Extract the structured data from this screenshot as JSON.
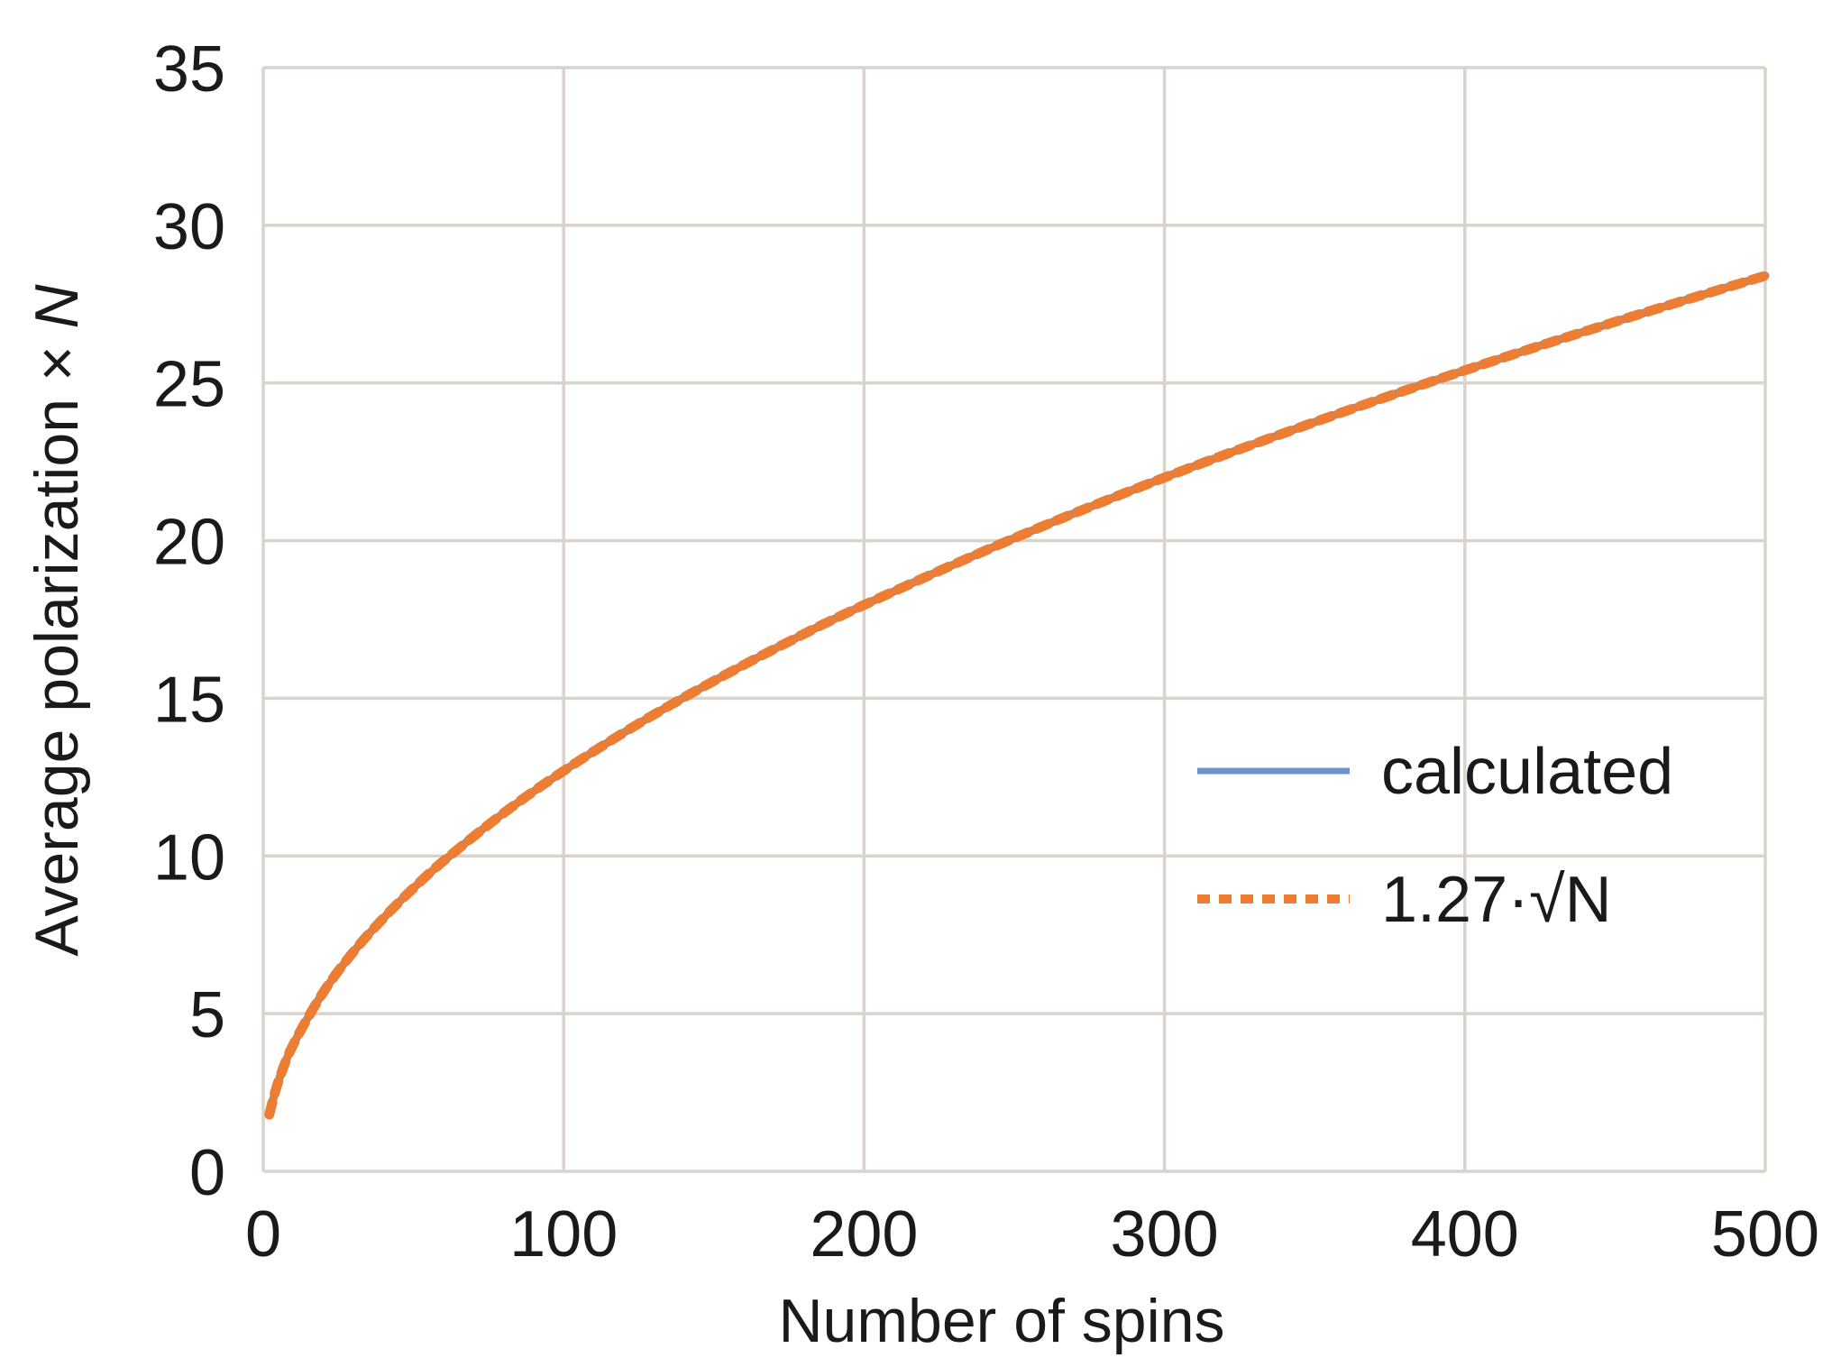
{
  "chart_data": {
    "type": "line",
    "title": "",
    "xlabel": "Number of spins",
    "ylabel": "Average polarization × ",
    "ylabel_italic": "N",
    "xlim": [
      0,
      500
    ],
    "ylim": [
      0,
      35
    ],
    "x_ticks": [
      0,
      100,
      200,
      300,
      400,
      500
    ],
    "x_tick_labels": [
      "0",
      "100",
      "200",
      "300",
      "400",
      "500"
    ],
    "y_ticks": [
      0,
      5,
      10,
      15,
      20,
      25,
      30,
      35
    ],
    "y_tick_labels": [
      "0",
      "5",
      "10",
      "15",
      "20",
      "25",
      "30",
      "35"
    ],
    "grid": true,
    "legend_position": "right",
    "series": [
      {
        "name": "calculated",
        "style": "solid",
        "color": "#6f93c8",
        "x": [
          2,
          5,
          10,
          20,
          30,
          40,
          50,
          60,
          80,
          100,
          125,
          150,
          175,
          200,
          250,
          300,
          350,
          400,
          450,
          500
        ],
        "y": [
          1.8,
          2.84,
          4.02,
          5.68,
          6.96,
          8.03,
          8.98,
          9.84,
          11.36,
          12.7,
          14.2,
          15.55,
          16.8,
          17.96,
          20.08,
          22.0,
          23.76,
          25.4,
          26.94,
          28.4
        ]
      },
      {
        "name": "1.27·√N",
        "style": "dotted",
        "color": "#ec7d33",
        "x": [
          2,
          5,
          10,
          20,
          30,
          40,
          50,
          60,
          80,
          100,
          125,
          150,
          175,
          200,
          250,
          300,
          350,
          400,
          450,
          500
        ],
        "y": [
          1.8,
          2.84,
          4.02,
          5.68,
          6.96,
          8.03,
          8.98,
          9.84,
          11.36,
          12.7,
          14.2,
          15.55,
          16.8,
          17.96,
          20.08,
          22.0,
          23.76,
          25.4,
          26.94,
          28.4
        ]
      }
    ]
  }
}
